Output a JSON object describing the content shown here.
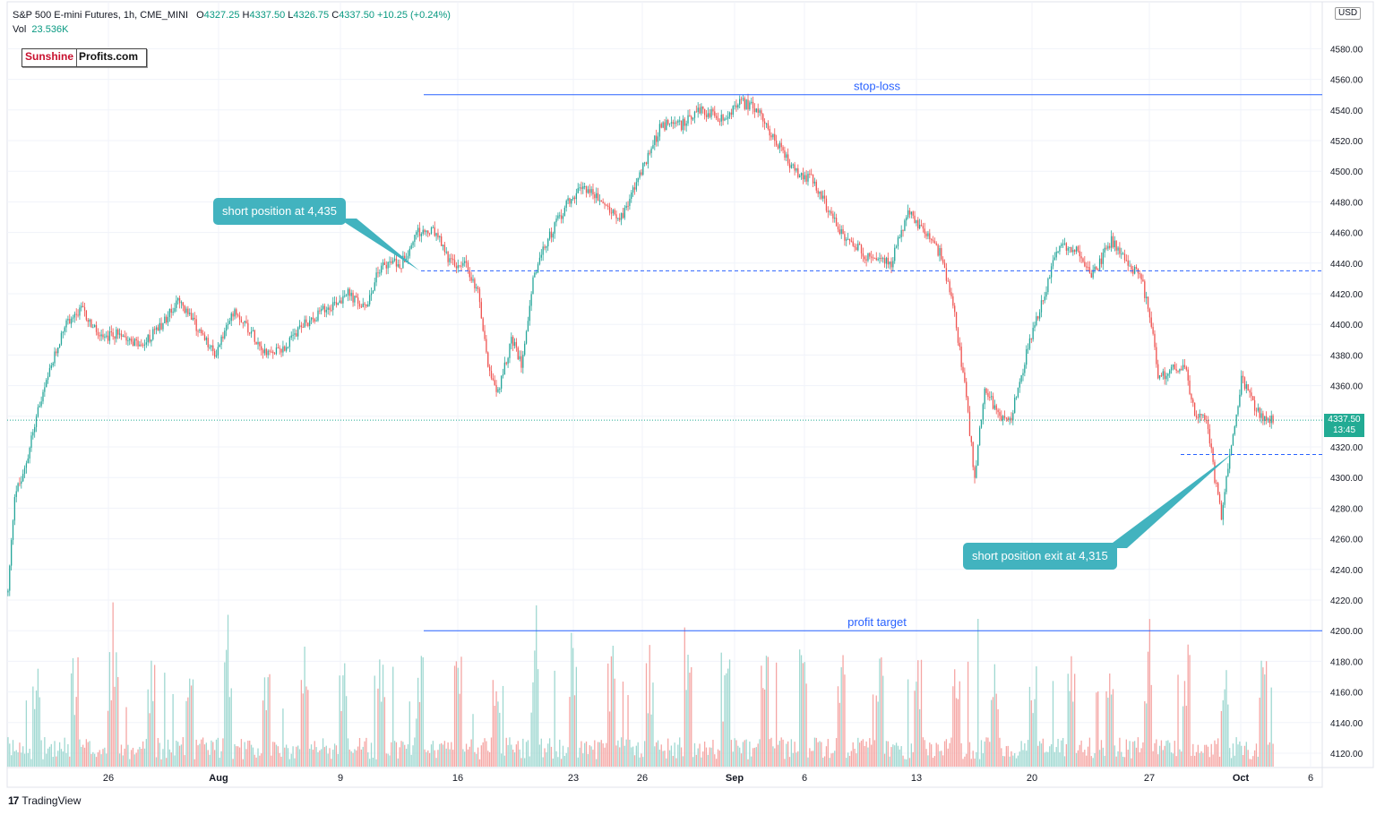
{
  "header": {
    "symbol": "S&P 500 E-mini Futures, 1h, CME_MINI",
    "open_label": "O",
    "open_value": "4327.25",
    "high_label": "H",
    "high_value": "4337.50",
    "low_label": "L",
    "low_value": "4326.75",
    "close_label": "C",
    "close_value": "4337.50",
    "change": "+10.25 (+0.24%)",
    "vol_label": "Vol",
    "vol_value": "23.536K"
  },
  "logo": {
    "part1": "Sunshine",
    "part2": "Profits.com"
  },
  "currency": "USD",
  "last_price": {
    "price": "4337.50",
    "countdown": "13:45"
  },
  "branding": {
    "name": "TradingView",
    "icon": "tradingview-logo-icon"
  },
  "annotations": {
    "stop_loss": "stop-loss",
    "profit_target": "profit target",
    "entry_callout": "short position at 4,435",
    "exit_callout": "short position exit at 4,315"
  },
  "colors": {
    "up": "#26a69a",
    "down": "#ef5350",
    "vol_up": "#9fd8d1",
    "vol_down": "#f5a6a4",
    "level_line": "#2962ff",
    "callout": "#42b3bf",
    "last_price": "#22ab94"
  },
  "chart_data": {
    "type": "candlestick",
    "title": "S&P 500 E-mini Futures, 1h, CME_MINI",
    "ylim": [
      4110,
      4600
    ],
    "y_ticks": [
      "4120.00",
      "4140.00",
      "4160.00",
      "4180.00",
      "4200.00",
      "4220.00",
      "4240.00",
      "4260.00",
      "4280.00",
      "4300.00",
      "4320.00",
      "4340.00",
      "4360.00",
      "4380.00",
      "4400.00",
      "4420.00",
      "4440.00",
      "4460.00",
      "4480.00",
      "4500.00",
      "4520.00",
      "4540.00",
      "4560.00",
      "4580.00"
    ],
    "x_ticks": [
      "26",
      "Aug",
      "9",
      "16",
      "23",
      "26",
      "Sep",
      "6",
      "13",
      "20",
      "27",
      "Oct",
      "6"
    ],
    "bold_x_ticks": [
      "Aug",
      "Sep",
      "Oct"
    ],
    "price_path": [
      [
        0,
        4225
      ],
      [
        4,
        4290
      ],
      [
        9,
        4300
      ],
      [
        16,
        4335
      ],
      [
        24,
        4365
      ],
      [
        34,
        4400
      ],
      [
        44,
        4410
      ],
      [
        56,
        4390
      ],
      [
        68,
        4395
      ],
      [
        80,
        4385
      ],
      [
        92,
        4400
      ],
      [
        102,
        4415
      ],
      [
        112,
        4400
      ],
      [
        124,
        4380
      ],
      [
        136,
        4410
      ],
      [
        146,
        4395
      ],
      [
        156,
        4380
      ],
      [
        166,
        4385
      ],
      [
        178,
        4400
      ],
      [
        190,
        4410
      ],
      [
        204,
        4420
      ],
      [
        214,
        4410
      ],
      [
        224,
        4440
      ],
      [
        236,
        4440
      ],
      [
        246,
        4460
      ],
      [
        256,
        4460
      ],
      [
        266,
        4440
      ],
      [
        274,
        4440
      ],
      [
        282,
        4420
      ],
      [
        288,
        4375
      ],
      [
        294,
        4355
      ],
      [
        302,
        4390
      ],
      [
        308,
        4375
      ],
      [
        316,
        4435
      ],
      [
        326,
        4460
      ],
      [
        336,
        4480
      ],
      [
        346,
        4490
      ],
      [
        356,
        4480
      ],
      [
        368,
        4470
      ],
      [
        380,
        4500
      ],
      [
        392,
        4530
      ],
      [
        404,
        4530
      ],
      [
        416,
        4540
      ],
      [
        428,
        4535
      ],
      [
        440,
        4545
      ],
      [
        450,
        4540
      ],
      [
        460,
        4520
      ],
      [
        472,
        4500
      ],
      [
        482,
        4495
      ],
      [
        492,
        4475
      ],
      [
        502,
        4455
      ],
      [
        510,
        4450
      ],
      [
        520,
        4440
      ],
      [
        530,
        4440
      ],
      [
        540,
        4475
      ],
      [
        550,
        4460
      ],
      [
        560,
        4445
      ],
      [
        568,
        4405
      ],
      [
        574,
        4360
      ],
      [
        580,
        4300
      ],
      [
        586,
        4360
      ],
      [
        594,
        4340
      ],
      [
        602,
        4340
      ],
      [
        612,
        4385
      ],
      [
        622,
        4420
      ],
      [
        630,
        4450
      ],
      [
        640,
        4450
      ],
      [
        650,
        4430
      ],
      [
        662,
        4455
      ],
      [
        672,
        4440
      ],
      [
        680,
        4430
      ],
      [
        686,
        4400
      ],
      [
        690,
        4365
      ],
      [
        698,
        4370
      ],
      [
        706,
        4375
      ],
      [
        712,
        4340
      ],
      [
        718,
        4340
      ],
      [
        722,
        4320
      ],
      [
        724,
        4300
      ],
      [
        728,
        4275
      ],
      [
        734,
        4320
      ],
      [
        740,
        4365
      ],
      [
        748,
        4345
      ],
      [
        756,
        4337.5
      ]
    ],
    "levels": [
      {
        "name": "stop-loss",
        "value": 4550,
        "style": "solid"
      },
      {
        "name": "entry",
        "value": 4435,
        "style": "dashed"
      },
      {
        "name": "exit",
        "value": 4315,
        "style": "dashed"
      },
      {
        "name": "profit target",
        "value": 4200,
        "style": "solid"
      },
      {
        "name": "last",
        "value": 4337.5,
        "style": "dotted"
      }
    ],
    "last": 4337.5
  }
}
